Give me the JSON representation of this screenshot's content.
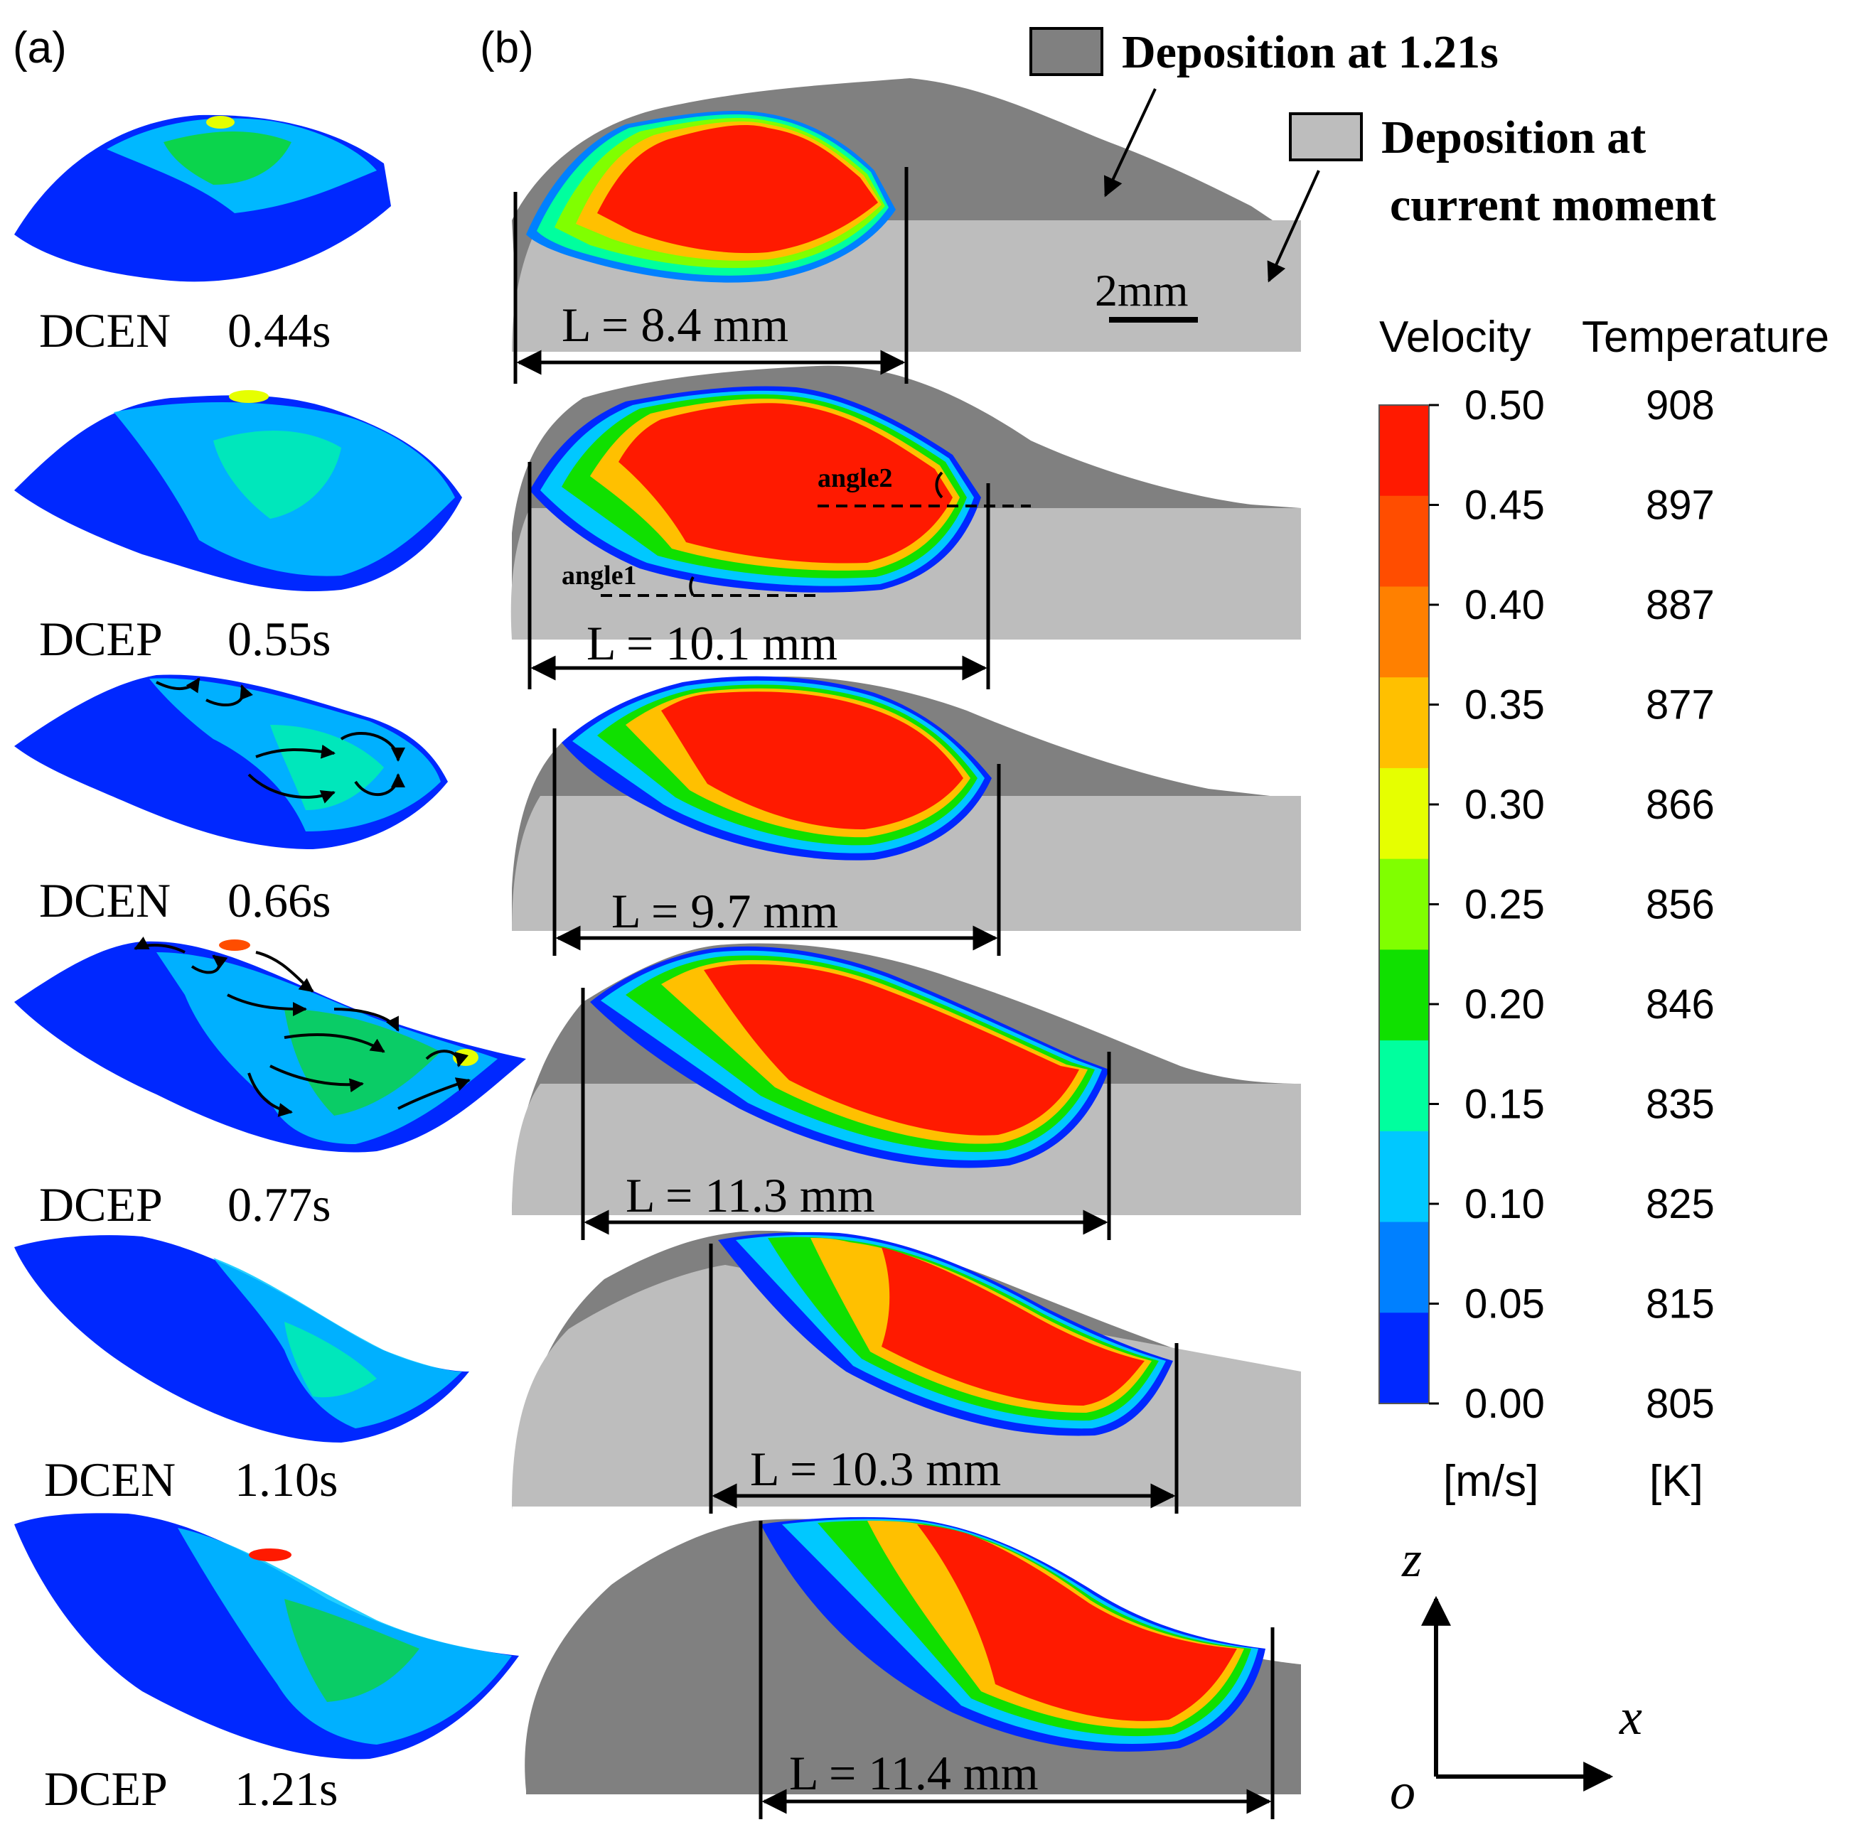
{
  "panel_a": {
    "label": "(a)",
    "captions": [
      {
        "mode": "DCEN",
        "time": "0.44s"
      },
      {
        "mode": "DCEP",
        "time": "0.55s"
      },
      {
        "mode": "DCEN",
        "time": "0.66s"
      },
      {
        "mode": "DCEP",
        "time": "0.77s"
      },
      {
        "mode": "DCEN",
        "time": "1.10s"
      },
      {
        "mode": "DCEP",
        "time": "1.21s"
      }
    ]
  },
  "panel_b": {
    "label": "(b)",
    "lengths": [
      "L = 8.4 mm",
      "L = 10.1 mm",
      "L = 9.7 mm",
      "L = 11.3 mm",
      "L = 10.3 mm",
      "L = 11.4 mm"
    ],
    "angle1": "angle1",
    "angle2": "angle2",
    "scale_bar": "2mm"
  },
  "legend": {
    "dark": "Deposition at 1.21s",
    "light_line1": "Deposition at",
    "light_line2": "current moment"
  },
  "colorbar": {
    "velocity_title": "Velocity",
    "temperature_title": "Temperature",
    "velocity_ticks": [
      "0.50",
      "0.45",
      "0.40",
      "0.35",
      "0.30",
      "0.25",
      "0.20",
      "0.15",
      "0.10",
      "0.05",
      "0.00"
    ],
    "temperature_ticks": [
      "908",
      "897",
      "887",
      "877",
      "866",
      "856",
      "846",
      "835",
      "825",
      "815",
      "805"
    ],
    "velocity_unit": "[m/s]",
    "temperature_unit": "[K]",
    "colors": [
      "#ff1a00",
      "#ff4d00",
      "#ff8000",
      "#ffc000",
      "#e6ff00",
      "#80ff00",
      "#10e000",
      "#00ff9e",
      "#00c8ff",
      "#0080ff",
      "#0028ff"
    ]
  },
  "axes": {
    "z": "z",
    "x": "x",
    "o": "o"
  }
}
